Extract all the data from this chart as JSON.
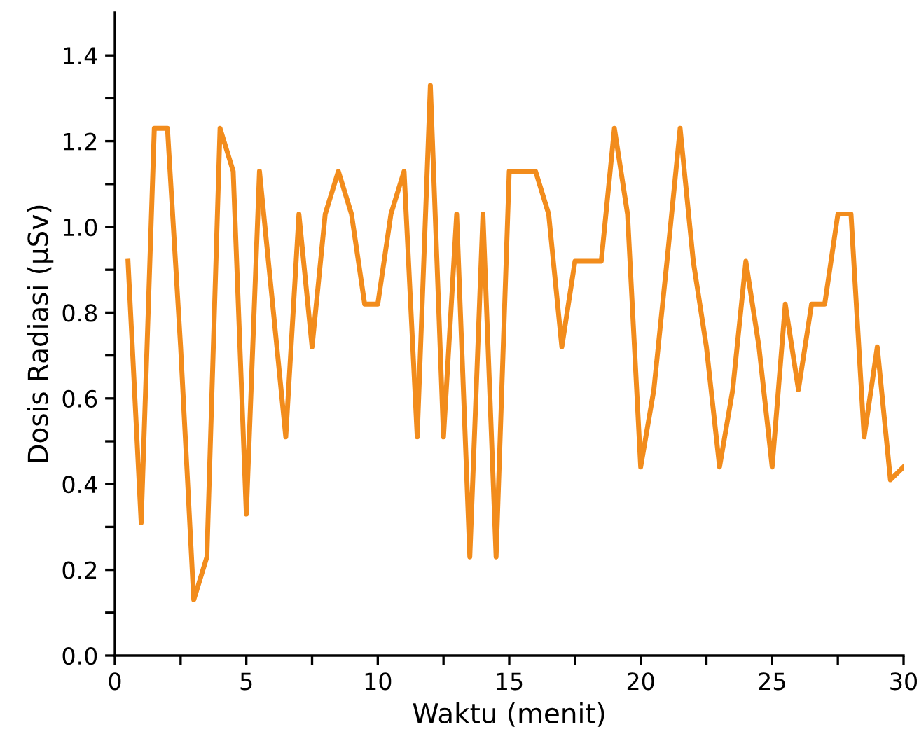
{
  "chart_data": {
    "type": "line",
    "xlabel": "Waktu (menit)",
    "ylabel": "Dosis Radiasi (µSv)",
    "x": [
      0.5,
      1,
      1.5,
      2,
      2.5,
      3,
      3.5,
      4,
      4.5,
      5,
      5.5,
      6,
      6.5,
      7,
      7.5,
      8,
      8.5,
      9,
      9.5,
      10,
      10.5,
      11,
      11.5,
      12,
      12.5,
      13,
      13.5,
      14,
      14.5,
      15,
      15.5,
      16,
      16.5,
      17,
      17.5,
      18,
      18.5,
      19,
      19.5,
      20,
      20.5,
      21,
      21.5,
      22,
      22.5,
      23,
      23.5,
      24,
      24.5,
      25,
      25.5,
      26,
      26.5,
      27,
      27.5,
      28,
      28.5,
      29,
      29.5,
      30
    ],
    "series": [
      {
        "color": "#f28c1c",
        "values": [
          0.92,
          0.31,
          1.23,
          1.23,
          0.72,
          0.13,
          0.23,
          1.23,
          1.13,
          0.33,
          1.13,
          0.82,
          0.51,
          1.03,
          0.72,
          1.03,
          1.13,
          1.03,
          0.82,
          0.82,
          1.03,
          1.13,
          0.51,
          1.33,
          0.51,
          1.03,
          0.23,
          1.03,
          0.23,
          1.13,
          1.13,
          1.13,
          1.03,
          0.72,
          0.92,
          0.92,
          0.92,
          1.23,
          1.03,
          0.44,
          0.62,
          0.92,
          1.23,
          0.92,
          0.72,
          0.44,
          0.62,
          0.92,
          0.72,
          0.44,
          0.82,
          0.62,
          0.82,
          0.82,
          1.03,
          1.03,
          0.51,
          0.72,
          0.41,
          0.44
        ]
      }
    ],
    "xlim": [
      0,
      30
    ],
    "ylim": [
      0,
      1.5
    ],
    "xticks": [
      0,
      {
        "value": 2.5,
        "label": null
      },
      5,
      {
        "value": 7.5,
        "label": null
      },
      10,
      {
        "value": 12.5,
        "label": null
      },
      15,
      {
        "value": 17.5,
        "label": null
      },
      20,
      {
        "value": 22.5,
        "label": null
      },
      25,
      {
        "value": 27.5,
        "label": null
      },
      30
    ],
    "yticks": [
      {
        "value": 0,
        "label": "0.0"
      },
      {
        "value": 0.1,
        "label": null
      },
      {
        "value": 0.2,
        "label": "0.2"
      },
      {
        "value": 0.3,
        "label": null
      },
      {
        "value": 0.4,
        "label": "0.4"
      },
      {
        "value": 0.5,
        "label": null
      },
      {
        "value": 0.6,
        "label": "0.6"
      },
      {
        "value": 0.7,
        "label": null
      },
      {
        "value": 0.8,
        "label": "0.8"
      },
      {
        "value": 0.9,
        "label": null
      },
      {
        "value": 1.0,
        "label": "1.0"
      },
      {
        "value": 1.1,
        "label": null
      },
      {
        "value": 1.2,
        "label": "1.2"
      },
      {
        "value": 1.3,
        "label": null
      },
      {
        "value": 1.4,
        "label": "1.4"
      }
    ],
    "grid": false,
    "legend": false,
    "marker": "none",
    "line_style": "solid"
  }
}
